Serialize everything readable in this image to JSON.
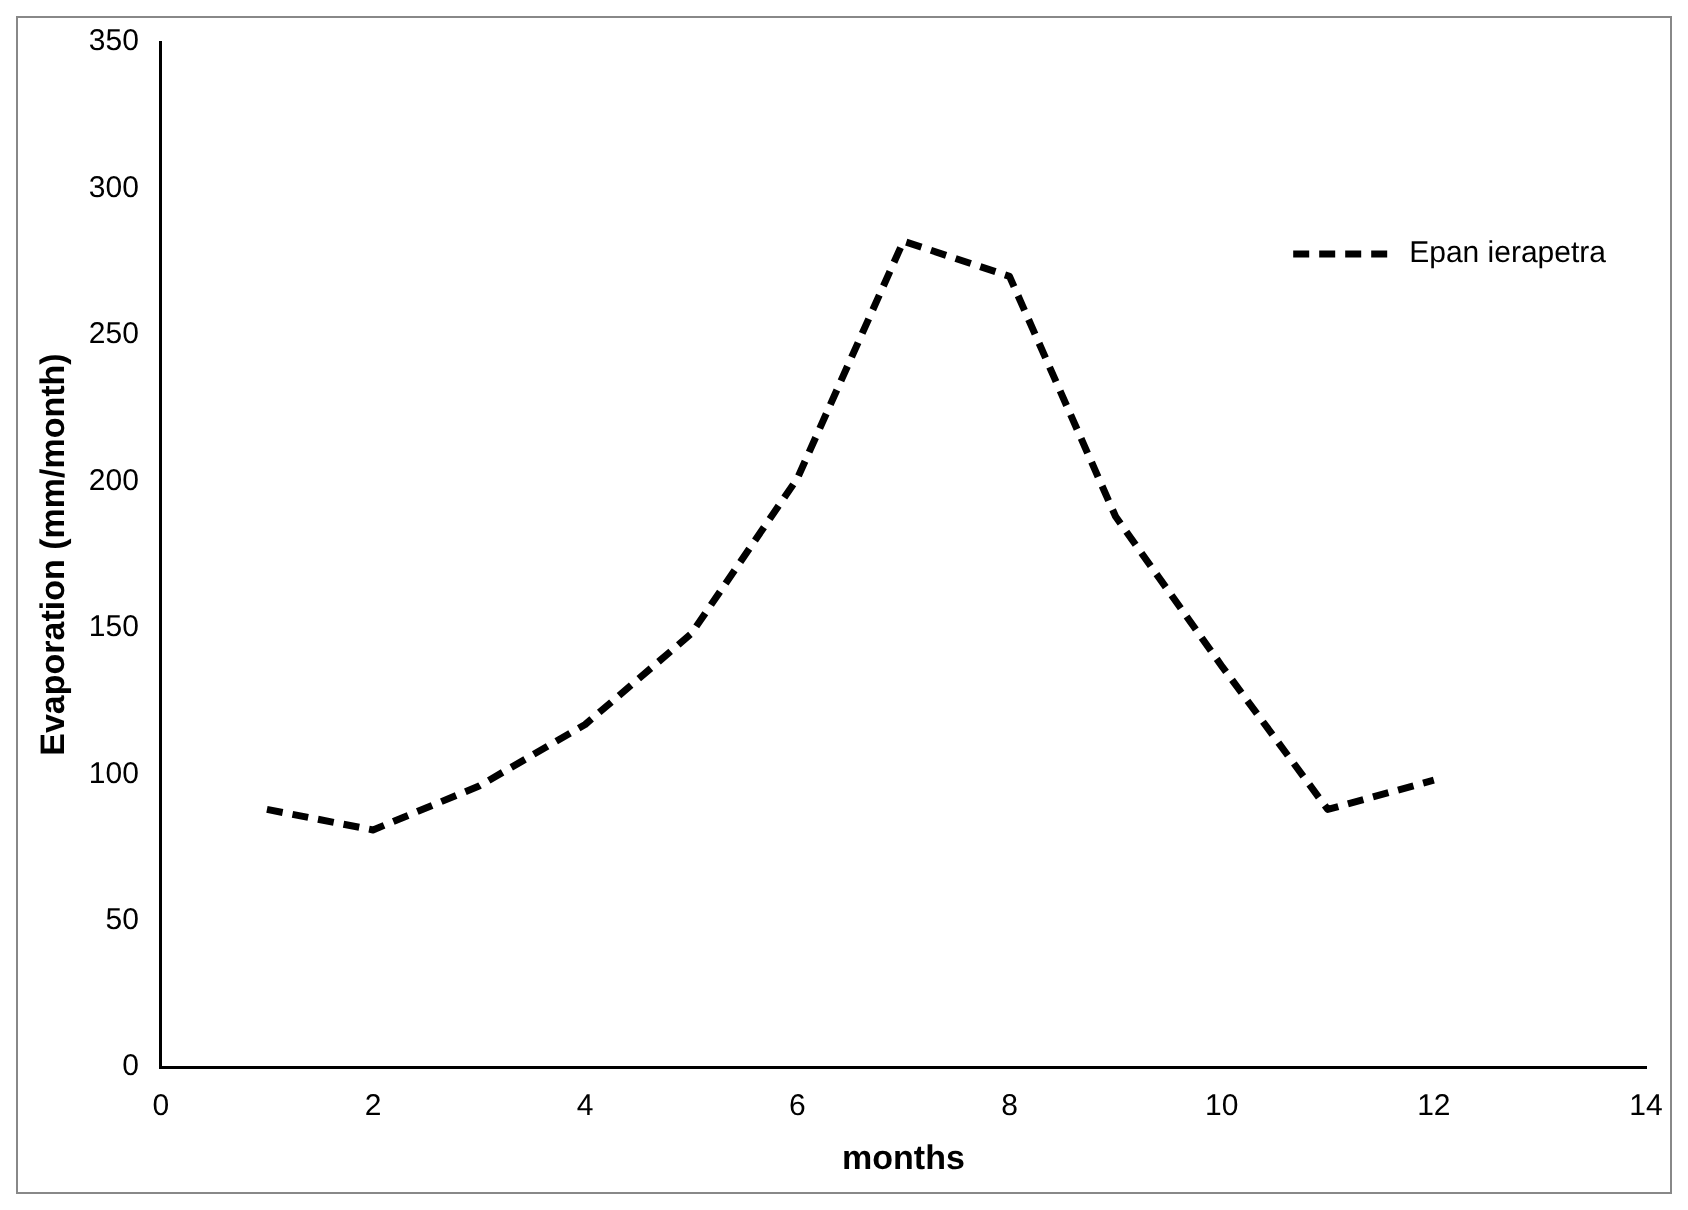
{
  "chart_data": {
    "type": "line",
    "xlabel": "months",
    "ylabel": "Evaporation (mm/month)",
    "x": [
      1,
      2,
      3,
      4,
      5,
      6,
      7,
      8,
      9,
      10,
      11,
      12
    ],
    "series": [
      {
        "name": "Epan ierapetra",
        "color": "#000000",
        "values": [
          88,
          81,
          96,
          117,
          148,
          201,
          282,
          270,
          188,
          137,
          88,
          98
        ]
      }
    ],
    "xlim": [
      0,
      14
    ],
    "xticks": [
      0,
      2,
      4,
      6,
      8,
      10,
      12,
      14
    ],
    "ylim": [
      0,
      350
    ],
    "yticks": [
      0,
      50,
      100,
      150,
      200,
      250,
      300,
      350
    ],
    "grid": false,
    "legend": "top right",
    "marker": "none",
    "line_style": "dashed"
  }
}
